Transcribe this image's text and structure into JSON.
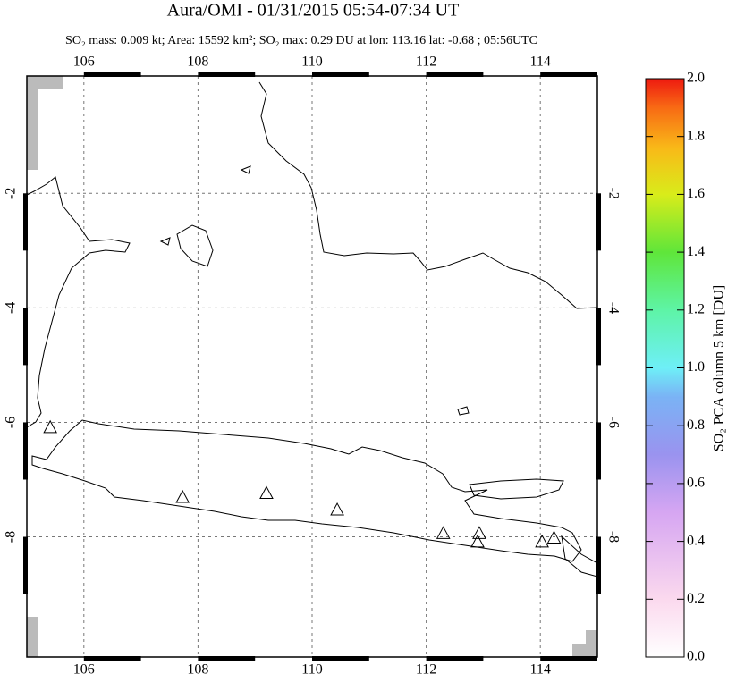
{
  "title": "Aura/OMI - 01/31/2015 05:54-07:34 UT",
  "subtitle": "SO₂ mass: 0.009 kt; Area: 15592 km²; SO₂ max: 0.29 DU at lon: 113.16 lat: -0.68 ; 05:56UTC",
  "map": {
    "lon_range": [
      105,
      115
    ],
    "lat_range": [
      -10.1,
      0.05
    ],
    "lon_ticks": [
      106,
      108,
      110,
      112,
      114
    ],
    "lat_ticks": [
      -2,
      -4,
      -6,
      -8
    ],
    "grid": true,
    "volcanoes": [
      {
        "lon": 105.41,
        "lat": -6.1
      },
      {
        "lon": 107.73,
        "lat": -7.32
      },
      {
        "lon": 109.2,
        "lat": -7.25
      },
      {
        "lon": 110.44,
        "lat": -7.54
      },
      {
        "lon": 112.3,
        "lat": -7.95
      },
      {
        "lon": 112.93,
        "lat": -7.95
      },
      {
        "lon": 112.9,
        "lat": -8.1
      },
      {
        "lon": 114.03,
        "lat": -8.1
      },
      {
        "lon": 114.24,
        "lat": -8.03
      }
    ]
  },
  "colorbar": {
    "label": "SO₂ PCA column 5 km [DU]",
    "range": [
      0,
      2
    ],
    "ticks": [
      {
        "value": 0,
        "label": "0.0"
      },
      0.2,
      0.4,
      0.6,
      0.8,
      {
        "value": 1,
        "label": "1.0"
      },
      1.2,
      1.4,
      1.6,
      1.8,
      {
        "value": 2,
        "label": "2.0"
      }
    ]
  }
}
